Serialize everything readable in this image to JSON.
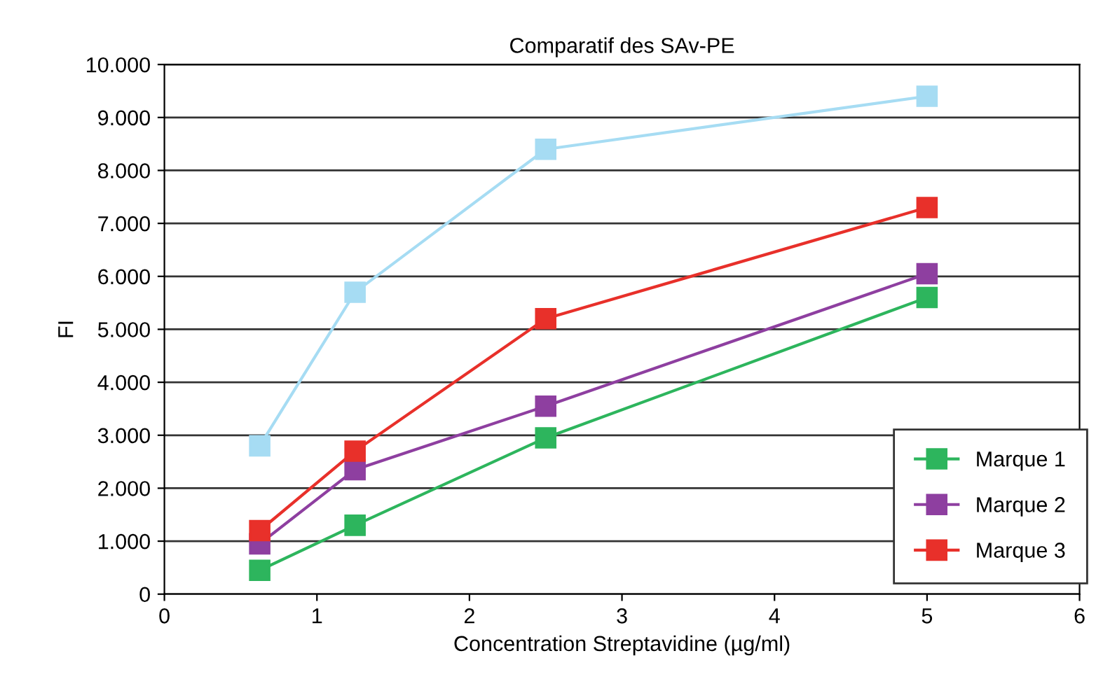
{
  "chart_data": {
    "type": "line",
    "title": "Comparatif des SAv-PE",
    "xlabel": "Concentration Streptavidine (µg/ml)",
    "ylabel": "FI",
    "x": [
      0.625,
      1.25,
      2.5,
      5
    ],
    "series": [
      {
        "name": "Marque 1",
        "color": "#2db55d",
        "values": [
          450,
          1300,
          2950,
          5600
        ]
      },
      {
        "name": "Marque 2",
        "color": "#8e3fa0",
        "values": [
          950,
          2350,
          3550,
          6050
        ]
      },
      {
        "name": "Marque 3",
        "color": "#e8302a",
        "values": [
          1200,
          2700,
          5200,
          7300
        ]
      },
      {
        "color": "#a6dcf3",
        "values": [
          2800,
          5700,
          8400,
          9400
        ]
      }
    ],
    "xlim": [
      0,
      6
    ],
    "xticks": [
      0,
      1,
      2,
      3,
      4,
      5,
      6
    ],
    "ylim": [
      0,
      10000
    ],
    "yticks": [
      0,
      {
        "value": 1000,
        "label": "1.000"
      },
      {
        "value": 2000,
        "label": "2.000"
      },
      {
        "value": 3000,
        "label": "3.000"
      },
      {
        "value": 4000,
        "label": "4.000"
      },
      {
        "value": 5000,
        "label": "5.000"
      },
      {
        "value": 6000,
        "label": "6.000"
      },
      {
        "value": 7000,
        "label": "7.000"
      },
      {
        "value": 8000,
        "label": "8.000"
      },
      {
        "value": 9000,
        "label": "9.000"
      },
      {
        "value": 10000,
        "label": "10.000"
      }
    ],
    "grid": "y",
    "legend": "right",
    "marker": "square",
    "line_style": "solid"
  }
}
